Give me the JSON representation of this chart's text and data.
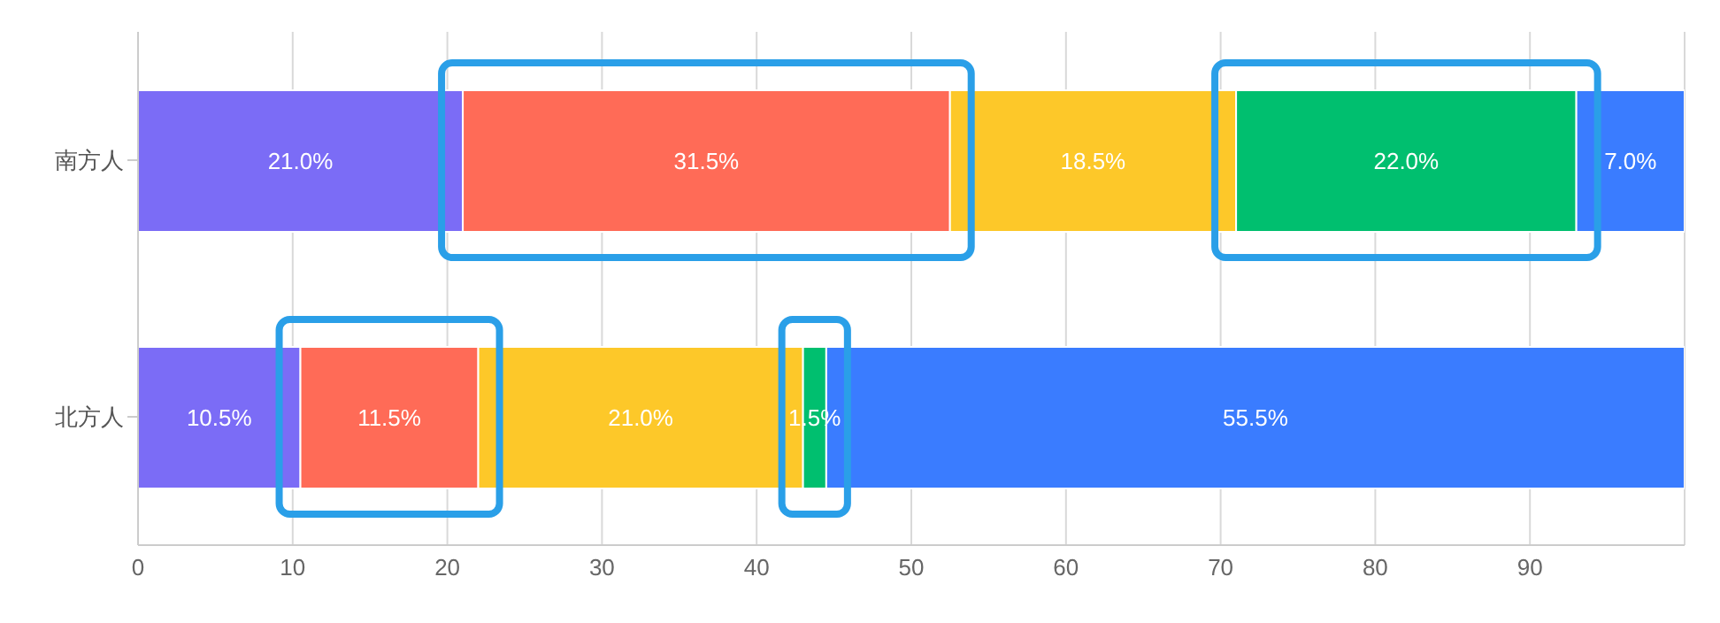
{
  "chart_data": {
    "type": "bar",
    "orientation": "horizontal",
    "stacked": true,
    "categories": [
      "南方人",
      "北方人"
    ],
    "series": [
      {
        "color": "#7b6cf6",
        "values": [
          21.0,
          10.5
        ],
        "value_labels": [
          "21.0%",
          "10.5%"
        ]
      },
      {
        "color": "#ff6b57",
        "values": [
          31.5,
          11.5
        ],
        "value_labels": [
          "31.5%",
          "11.5%"
        ]
      },
      {
        "color": "#fdc829",
        "values": [
          18.5,
          21.0
        ],
        "value_labels": [
          "18.5%",
          "21.0%"
        ]
      },
      {
        "color": "#00bf6f",
        "values": [
          22.0,
          1.5
        ],
        "value_labels": [
          "22.0%",
          "1.5%"
        ]
      },
      {
        "color": "#3a7cff",
        "values": [
          7.0,
          55.5
        ],
        "value_labels": [
          "7.0%",
          "55.5%"
        ]
      }
    ],
    "xlim": [
      0,
      100
    ],
    "xticks": [
      0,
      10,
      20,
      30,
      40,
      50,
      60,
      70,
      80,
      90
    ],
    "grid": "x",
    "legend": false
  }
}
